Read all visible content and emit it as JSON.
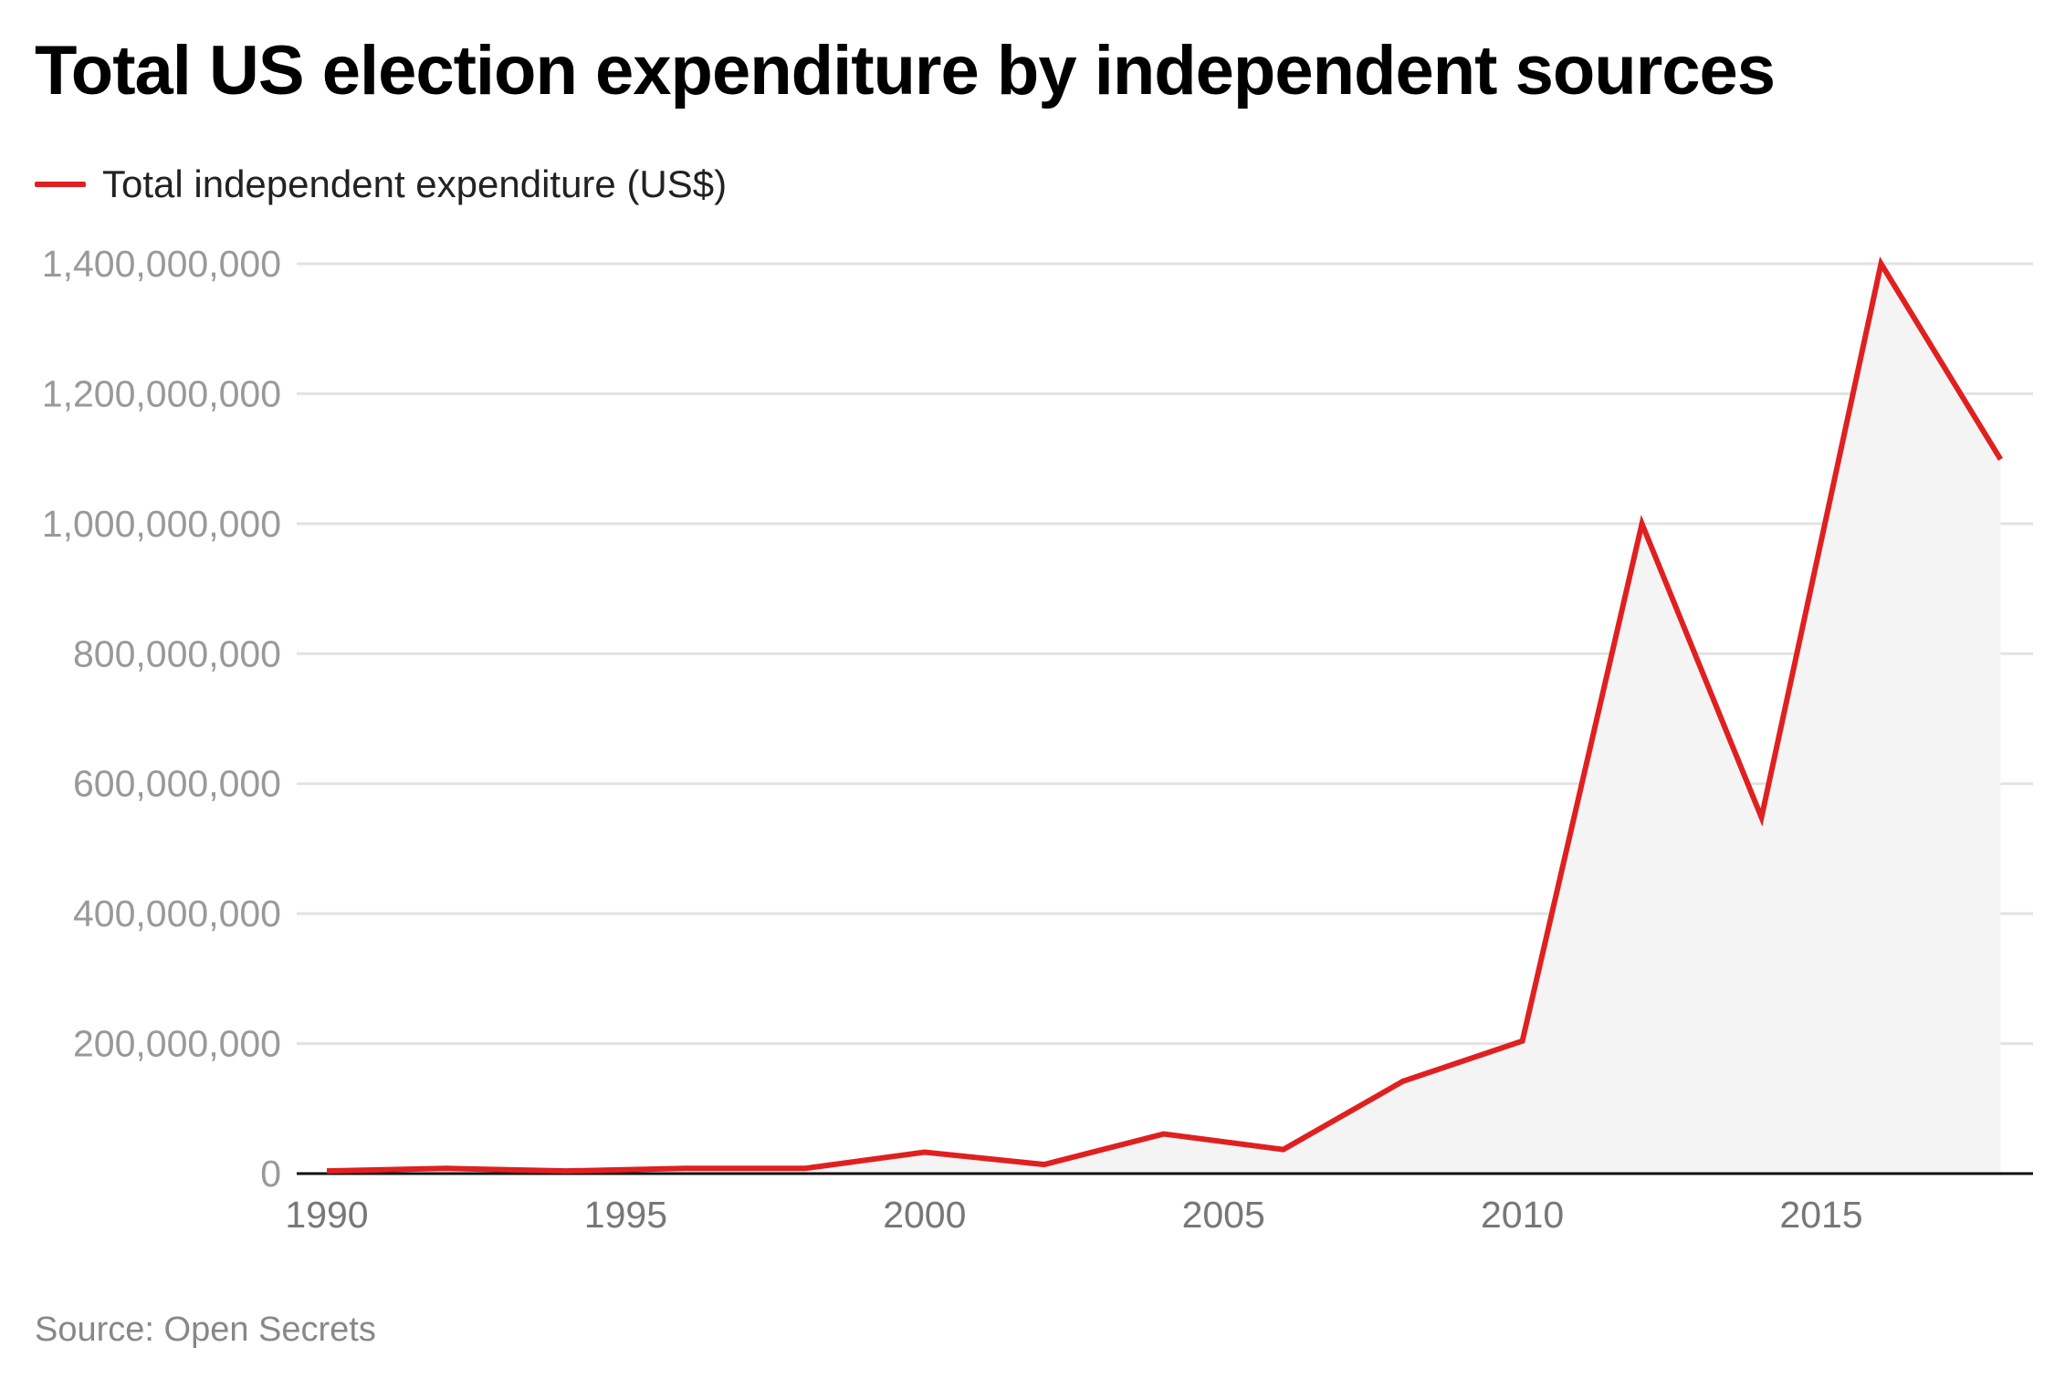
{
  "chart_data": {
    "type": "area",
    "title": "Total US election expenditure by independent sources",
    "xlabel": "",
    "ylabel": "",
    "series": [
      {
        "name": "Total independent expenditure (US$)",
        "color": "#e02020",
        "x": [
          1990,
          1992,
          1994,
          1996,
          1998,
          2000,
          2002,
          2004,
          2006,
          2008,
          2010,
          2012,
          2014,
          2016,
          2018
        ],
        "values": [
          4000000,
          8000000,
          4000000,
          8000000,
          8000000,
          33000000,
          14000000,
          61000000,
          37000000,
          142000000,
          204000000,
          1000000000,
          548000000,
          1400000000,
          1099000000
        ]
      }
    ],
    "xlim": [
      1990,
      2018
    ],
    "ylim": [
      0,
      1400000000
    ],
    "x_ticks": [
      "1990",
      "1995",
      "2000",
      "2005",
      "2010",
      "2015"
    ],
    "x_tick_values": [
      1990,
      1995,
      2000,
      2005,
      2010,
      2015
    ],
    "y_ticks": [
      "0",
      "200,000,000",
      "400,000,000",
      "600,000,000",
      "800,000,000",
      "1,000,000,000",
      "1,200,000,000",
      "1,400,000,000"
    ],
    "y_tick_values": [
      0,
      200000000,
      400000000,
      600000000,
      800000000,
      1000000000,
      1200000000,
      1400000000
    ],
    "grid": true,
    "legend_placement": "top-left",
    "area_fill_color": "#f4f4f4",
    "source": "Source: Open Secrets"
  }
}
